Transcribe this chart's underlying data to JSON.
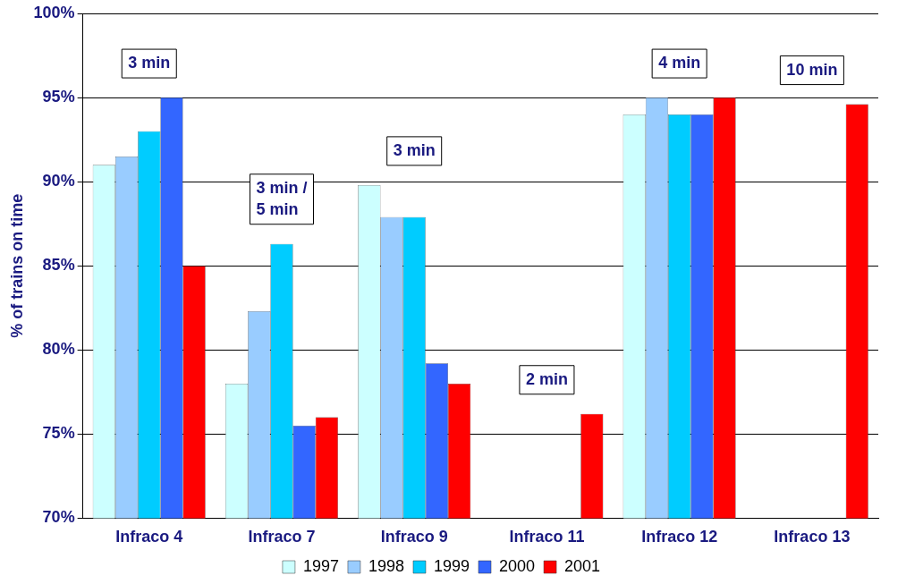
{
  "chart_data": {
    "type": "bar",
    "ylabel": "% of trains on time",
    "categories": [
      "Infraco 4",
      "Infraco 7",
      "Infraco 9",
      "Infraco 11",
      "Infraco 12",
      "Infraco 13"
    ],
    "series": [
      {
        "name": "1997",
        "color": "#ccffff",
        "values": [
          91.0,
          78.0,
          89.8,
          null,
          94.0,
          null
        ]
      },
      {
        "name": "1998",
        "color": "#99ccff",
        "values": [
          91.5,
          82.3,
          87.9,
          null,
          95.0,
          null
        ]
      },
      {
        "name": "1999",
        "color": "#00ccff",
        "values": [
          93.0,
          86.3,
          87.9,
          null,
          94.0,
          null
        ]
      },
      {
        "name": "2000",
        "color": "#3366ff",
        "values": [
          95.0,
          75.5,
          79.2,
          null,
          94.0,
          null
        ]
      },
      {
        "name": "2001",
        "color": "#ff0000",
        "values": [
          85.0,
          76.0,
          78.0,
          76.2,
          95.0,
          94.6
        ]
      }
    ],
    "ylim": [
      70,
      100
    ],
    "yticks": [
      {
        "value": 70,
        "label": "70%"
      },
      {
        "value": 75,
        "label": "75%"
      },
      {
        "value": 80,
        "label": "80%"
      },
      {
        "value": 85,
        "label": "85%"
      },
      {
        "value": 90,
        "label": "90%"
      },
      {
        "value": 95,
        "label": "95%"
      },
      {
        "value": 100,
        "label": "100%"
      }
    ],
    "grid": "y",
    "legend": "bottom",
    "annotations": [
      "3 min",
      "3 min /\n5 min",
      "3 min",
      "2 min",
      "4 min",
      "10 min"
    ]
  }
}
